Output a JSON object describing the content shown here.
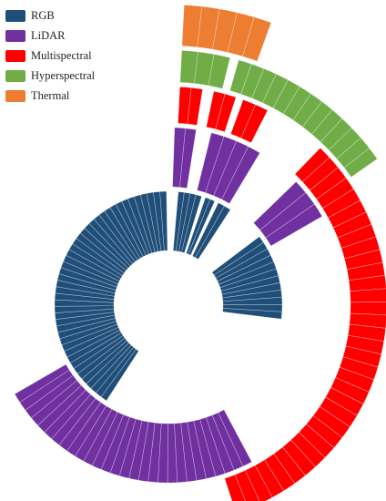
{
  "chart_data": {
    "type": "radial-bar",
    "legend_position": "top-left",
    "series": [
      {
        "name": "RGB",
        "color": "#1f4e79"
      },
      {
        "name": "LiDAR",
        "color": "#7030a0"
      },
      {
        "name": "Multispectral",
        "color": "#ff0000"
      },
      {
        "name": "Hyperspectral",
        "color": "#70ad47"
      },
      {
        "name": "Thermal",
        "color": "#ed7d31"
      }
    ],
    "rings": [
      {
        "series": "RGB",
        "arcs": [
          {
            "start": 5,
            "end": 17,
            "segments": 4
          },
          {
            "start": 19,
            "end": 24,
            "segments": 2
          },
          {
            "start": 26,
            "end": 33,
            "segments": 2
          },
          {
            "start": 53,
            "end": 97,
            "segments": 12
          },
          {
            "start": 213,
            "end": 359,
            "segments": 44
          }
        ]
      },
      {
        "series": "LiDAR",
        "arcs": [
          {
            "start": 2,
            "end": 9,
            "segments": 2
          },
          {
            "start": 14,
            "end": 31,
            "segments": 4
          },
          {
            "start": 46,
            "end": 60,
            "segments": 3
          },
          {
            "start": 152,
            "end": 240,
            "segments": 28
          }
        ]
      },
      {
        "series": "Multispectral",
        "arcs": [
          {
            "start": 3,
            "end": 9,
            "segments": 2
          },
          {
            "start": 12,
            "end": 18,
            "segments": 2
          },
          {
            "start": 20,
            "end": 27,
            "segments": 2
          },
          {
            "start": 44,
            "end": 162,
            "segments": 34
          }
        ]
      },
      {
        "series": "Hyperspectral",
        "arcs": [
          {
            "start": 3,
            "end": 14,
            "segments": 3
          },
          {
            "start": 16,
            "end": 55,
            "segments": 13
          }
        ]
      },
      {
        "series": "Thermal",
        "arcs": [
          {
            "start": 3,
            "end": 20,
            "segments": 5
          }
        ]
      }
    ]
  }
}
